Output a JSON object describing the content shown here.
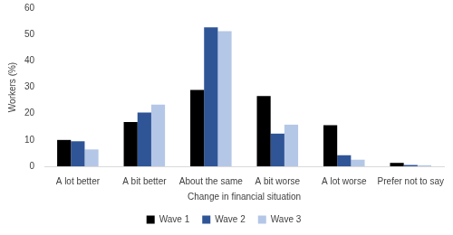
{
  "chart_data": {
    "type": "bar",
    "categories": [
      "A lot better",
      "A bit better",
      "About the same",
      "A bit worse",
      "A lot worse",
      "Prefer not to say"
    ],
    "series": [
      {
        "name": "Wave 1",
        "color": "#000000",
        "values": [
          10,
          16.8,
          29,
          26.7,
          15.6,
          1.3
        ]
      },
      {
        "name": "Wave 2",
        "color": "#2f5597",
        "values": [
          9.5,
          20.4,
          52.7,
          12.4,
          4.2,
          0.5
        ]
      },
      {
        "name": "Wave 3",
        "color": "#b4c7e7",
        "values": [
          6.4,
          23.4,
          51.3,
          15.8,
          2.5,
          0.4
        ]
      }
    ],
    "x_label": "Change in financial situation",
    "y_label": "Workers (%)",
    "ylim": [
      0,
      60
    ],
    "yticks": [
      0,
      10,
      20,
      30,
      40,
      50,
      60
    ],
    "grid": false,
    "legend": "bottom"
  }
}
